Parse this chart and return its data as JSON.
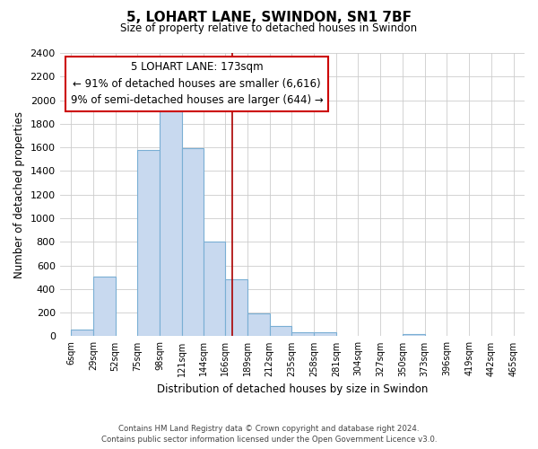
{
  "title": "5, LOHART LANE, SWINDON, SN1 7BF",
  "subtitle": "Size of property relative to detached houses in Swindon",
  "xlabel": "Distribution of detached houses by size in Swindon",
  "ylabel": "Number of detached properties",
  "bar_color": "#c8d9ef",
  "bar_edge_color": "#7aafd4",
  "bin_labels": [
    "6sqm",
    "29sqm",
    "52sqm",
    "75sqm",
    "98sqm",
    "121sqm",
    "144sqm",
    "166sqm",
    "189sqm",
    "212sqm",
    "235sqm",
    "258sqm",
    "281sqm",
    "304sqm",
    "327sqm",
    "350sqm",
    "373sqm",
    "396sqm",
    "419sqm",
    "442sqm",
    "465sqm"
  ],
  "bin_edges": [
    6,
    29,
    52,
    75,
    98,
    121,
    144,
    166,
    189,
    212,
    235,
    258,
    281,
    304,
    327,
    350,
    373,
    396,
    419,
    442,
    465
  ],
  "bar_heights": [
    55,
    505,
    0,
    1580,
    1950,
    1595,
    800,
    480,
    190,
    90,
    35,
    30,
    0,
    0,
    0,
    20,
    0,
    0,
    0,
    0
  ],
  "property_line_x": 173,
  "property_line_color": "#aa0000",
  "ylim": [
    0,
    2400
  ],
  "yticks": [
    0,
    200,
    400,
    600,
    800,
    1000,
    1200,
    1400,
    1600,
    1800,
    2000,
    2200,
    2400
  ],
  "annotation_title": "5 LOHART LANE: 173sqm",
  "annotation_line1": "← 91% of detached houses are smaller (6,616)",
  "annotation_line2": "9% of semi-detached houses are larger (644) →",
  "annotation_box_color": "#ffffff",
  "annotation_box_edge": "#cc0000",
  "footer_line1": "Contains HM Land Registry data © Crown copyright and database right 2024.",
  "footer_line2": "Contains public sector information licensed under the Open Government Licence v3.0.",
  "background_color": "#ffffff",
  "grid_color": "#cccccc"
}
